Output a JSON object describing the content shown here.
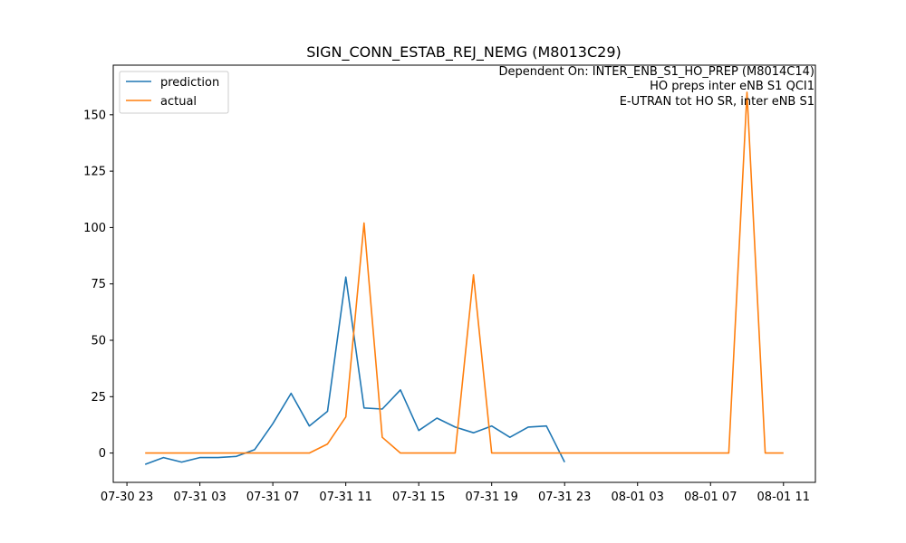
{
  "chart_data": {
    "type": "line",
    "title": "SIGN_CONN_ESTAB_REJ_NEMG (M8013C29)",
    "xlabel": "",
    "ylabel": "",
    "annotations": [
      "Dependent On: INTER_ENB_S1_HO_PREP (M8014C14)",
      "HO preps inter eNB S1 QCI1",
      "E-UTRAN tot HO SR, inter eNB S1"
    ],
    "x_ticks": [
      "07-30 23",
      "07-31 03",
      "07-31 07",
      "07-31 11",
      "07-31 15",
      "07-31 19",
      "07-31 23",
      "08-01 03",
      "08-01 07",
      "08-01 11"
    ],
    "y_ticks": [
      "0",
      "25",
      "50",
      "75",
      "100",
      "125",
      "150"
    ],
    "ylim": [
      -13,
      172
    ],
    "legend_position": "upper left",
    "series": [
      {
        "name": "prediction",
        "color": "#1f77b4",
        "x": [
          "07-31 00",
          "07-31 01",
          "07-31 02",
          "07-31 03",
          "07-31 04",
          "07-31 05",
          "07-31 06",
          "07-31 07",
          "07-31 08",
          "07-31 09",
          "07-31 10",
          "07-31 11",
          "07-31 12",
          "07-31 13",
          "07-31 14",
          "07-31 15",
          "07-31 16",
          "07-31 17",
          "07-31 18",
          "07-31 19",
          "07-31 20",
          "07-31 21",
          "07-31 22",
          "07-31 23"
        ],
        "values": [
          -5,
          -2,
          -4,
          -2,
          -2,
          -1.5,
          1.5,
          13,
          26.5,
          12,
          18.5,
          78,
          20,
          19.5,
          28,
          10,
          15.5,
          11.5,
          9,
          12,
          7,
          11.5,
          12,
          -4
        ]
      },
      {
        "name": "actual",
        "color": "#ff7f0e",
        "x": [
          "07-31 00",
          "07-31 01",
          "07-31 02",
          "07-31 03",
          "07-31 04",
          "07-31 05",
          "07-31 06",
          "07-31 07",
          "07-31 08",
          "07-31 09",
          "07-31 10",
          "07-31 11",
          "07-31 12",
          "07-31 13",
          "07-31 14",
          "07-31 15",
          "07-31 16",
          "07-31 17",
          "07-31 18",
          "07-31 19",
          "07-31 20",
          "07-31 21",
          "07-31 22",
          "07-31 23",
          "08-01 00",
          "08-01 01",
          "08-01 02",
          "08-01 03",
          "08-01 04",
          "08-01 05",
          "08-01 06",
          "08-01 07",
          "08-01 08",
          "08-01 09",
          "08-01 10",
          "08-01 11"
        ],
        "values": [
          0,
          0,
          0,
          0,
          0,
          0,
          0,
          0,
          0,
          0,
          4,
          16,
          102,
          7,
          0,
          0,
          0,
          0,
          79,
          0,
          0,
          0,
          0,
          0,
          0,
          0,
          0,
          0,
          0,
          0,
          0,
          0,
          0,
          160,
          0,
          0
        ]
      }
    ]
  }
}
